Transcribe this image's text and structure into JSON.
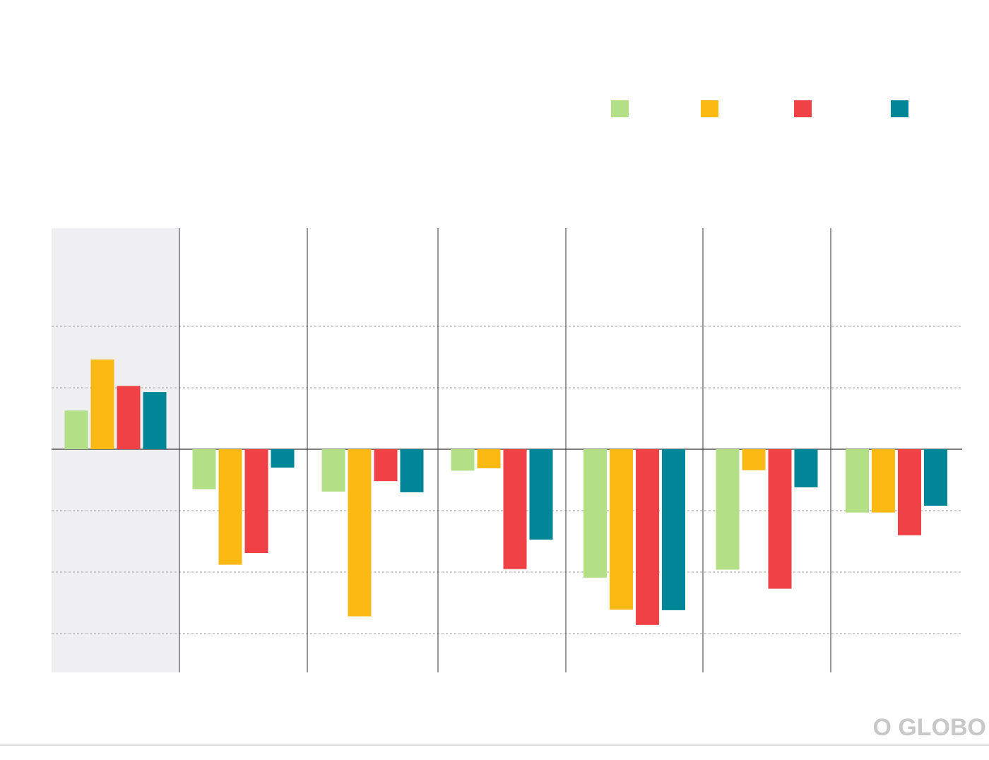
{
  "chart_data": {
    "type": "bar",
    "title": "",
    "xlabel": "",
    "ylabel": "",
    "ylim": [
      -3.65,
      3.6
    ],
    "gridlines": [
      -3,
      -2,
      -1,
      1,
      2
    ],
    "grid": true,
    "legend_placement": "top-right",
    "categories": [
      "",
      "",
      "",
      "",
      "",
      "",
      ""
    ],
    "highlight_first_group": true,
    "series": [
      {
        "color": "#b3e086",
        "values": [
          0.63,
          -0.65,
          -0.69,
          -0.35,
          -2.09,
          -1.96,
          -1.03
        ]
      },
      {
        "color": "#fdb913",
        "values": [
          1.46,
          -1.88,
          -2.72,
          -0.31,
          -2.61,
          -0.34,
          -1.03
        ]
      },
      {
        "color": "#ef4146",
        "values": [
          1.03,
          -1.69,
          -0.52,
          -1.95,
          -2.86,
          -2.27,
          -1.4
        ]
      },
      {
        "color": "#008697",
        "values": [
          0.93,
          -0.3,
          -0.7,
          -1.47,
          -2.62,
          -0.62,
          -0.92
        ]
      }
    ]
  },
  "logo": {
    "text": "O GLOBO"
  }
}
